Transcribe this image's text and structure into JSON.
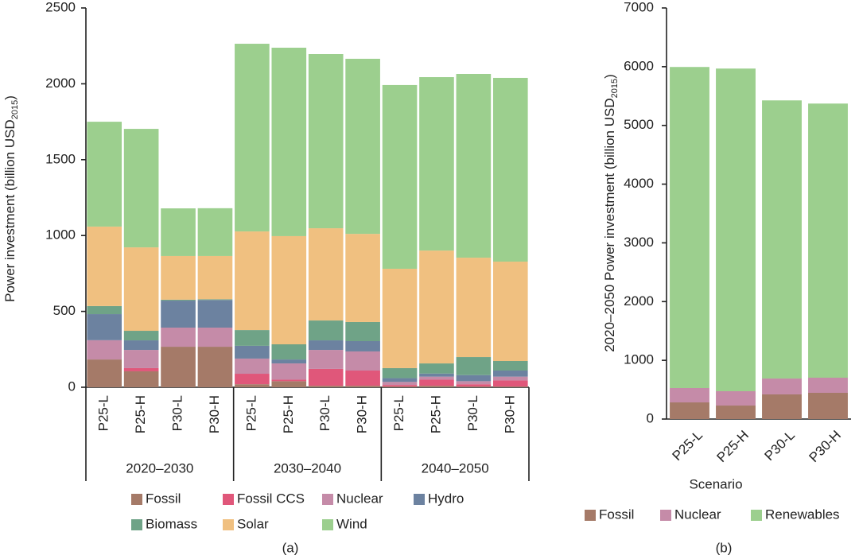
{
  "chart_data": [
    {
      "type": "bar",
      "stacked": true,
      "panel_label": "(a)",
      "ylabel": "Power investment (billion USD",
      "ylabel_sub": "2015",
      "ylabel_end": ")",
      "groups": [
        "2020–2030",
        "2030–2040",
        "2040–2050"
      ],
      "categories": [
        "P25-L",
        "P25-H",
        "P30-L",
        "P30-H",
        "P25-L",
        "P25-H",
        "P30-L",
        "P30-H",
        "P25-L",
        "P25-H",
        "P30-L",
        "P30-H"
      ],
      "ylim": [
        0,
        2500
      ],
      "yticks": [
        0,
        500,
        1000,
        1500,
        2000,
        2500
      ],
      "series": [
        {
          "name": "Fossil",
          "color": "#a57a68",
          "values": [
            183,
            105,
            267,
            267,
            20,
            40,
            10,
            10,
            5,
            10,
            5,
            5
          ]
        },
        {
          "name": "Fossil CCS",
          "color": "#e0577a",
          "values": [
            0,
            21,
            0,
            0,
            69,
            10,
            111,
            100,
            10,
            40,
            15,
            40
          ]
        },
        {
          "name": "Nuclear",
          "color": "#c58ba8",
          "values": [
            127,
            120,
            126,
            126,
            100,
            107,
            125,
            126,
            20,
            20,
            20,
            25
          ]
        },
        {
          "name": "Hydro",
          "color": "#6c82a0",
          "values": [
            172,
            63,
            178,
            182,
            84,
            26,
            63,
            68,
            25,
            20,
            40,
            40
          ]
        },
        {
          "name": "Biomass",
          "color": "#6fa387",
          "values": [
            53,
            63,
            6,
            5,
            104,
            100,
            131,
            126,
            66,
            67,
            119,
            63
          ]
        },
        {
          "name": "Solar",
          "color": "#f0c080",
          "values": [
            524,
            550,
            288,
            285,
            650,
            713,
            608,
            581,
            655,
            744,
            655,
            655
          ]
        },
        {
          "name": "Wind",
          "color": "#9ccf8e",
          "values": [
            691,
            781,
            314,
            315,
            1237,
            1242,
            1148,
            1154,
            1211,
            1143,
            1211,
            1211
          ]
        }
      ]
    },
    {
      "type": "bar",
      "stacked": true,
      "panel_label": "(b)",
      "ylabel": "2020–2050 Power investment (billion USD",
      "ylabel_sub": "2015",
      "ylabel_end": ")",
      "xlabel": "Scenario",
      "categories": [
        "P25-L",
        "P25-H",
        "P30-L",
        "P30-H"
      ],
      "ylim": [
        0,
        7000
      ],
      "yticks": [
        0,
        1000,
        2000,
        3000,
        4000,
        5000,
        6000,
        7000
      ],
      "series": [
        {
          "name": "Fossil",
          "color": "#a57a68",
          "values": [
            284,
            230,
            420,
            447
          ]
        },
        {
          "name": "Nuclear",
          "color": "#c58ba8",
          "values": [
            244,
            244,
            270,
            257
          ]
        },
        {
          "name": "Renewables",
          "color": "#9ccf8e",
          "values": [
            5467,
            5494,
            4736,
            4668
          ]
        }
      ]
    }
  ]
}
